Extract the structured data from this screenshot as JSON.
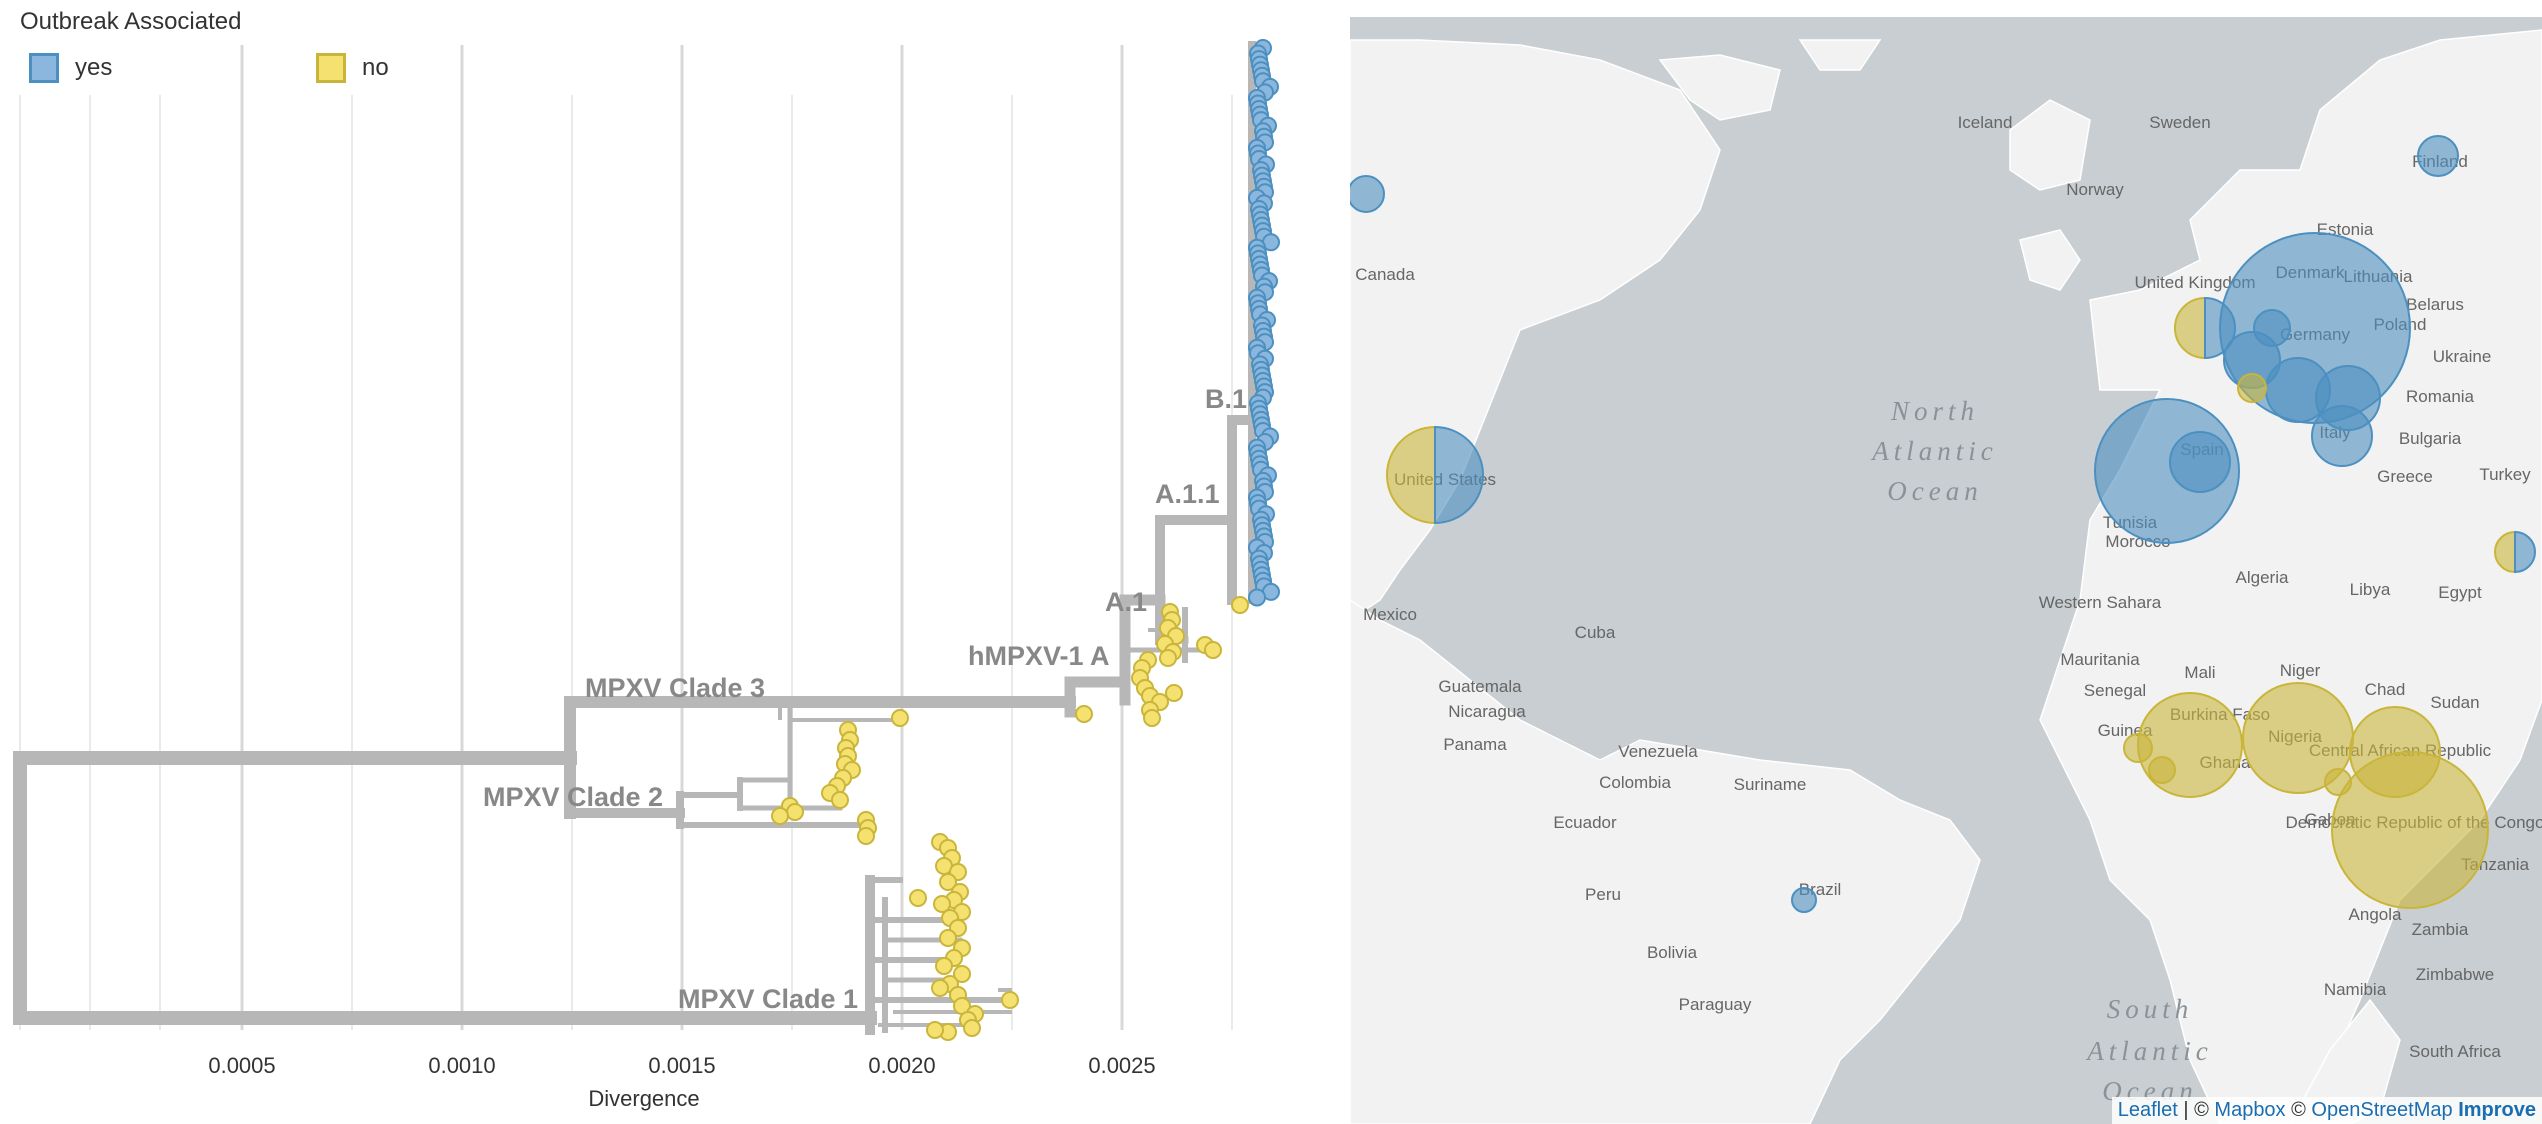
{
  "legend": {
    "title": "Outbreak Associated",
    "items": [
      {
        "label": "yes",
        "color": "#4C90C0",
        "fill": "#8BB7DF"
      },
      {
        "label": "no",
        "color": "#C9B53A",
        "fill": "#F5E16F"
      }
    ]
  },
  "tree": {
    "xlabel": "Divergence",
    "xticks": [
      "0.0005",
      "0.0010",
      "0.0015",
      "0.0020",
      "0.0025"
    ],
    "clade_labels": [
      "MPXV Clade 3",
      "MPXV Clade 2",
      "MPXV Clade 1",
      "hMPXV-1 A",
      "A.1",
      "A.1.1",
      "B.1"
    ],
    "branch_color": "#B7B7B7"
  },
  "map": {
    "places": [
      "Iceland",
      "Sweden",
      "Finland",
      "Norway",
      "Estonia",
      "Denmark",
      "Lithuania",
      "United Kingdom",
      "Belarus",
      "Germany",
      "Poland",
      "Ukraine",
      "Romania",
      "Bulgaria",
      "Italy",
      "Greece",
      "Turkey",
      "Spain",
      "Tunisia",
      "Morocco",
      "Algeria",
      "Libya",
      "Egypt",
      "Western Sahara",
      "Mauritania",
      "Mali",
      "Niger",
      "Chad",
      "Sudan",
      "Senegal",
      "Guinea",
      "Burkina Faso",
      "Ghana",
      "Nigeria",
      "Central African Republic",
      "Gabon",
      "Democratic Republic of the Congo",
      "Tanzania",
      "Angola",
      "Zambia",
      "Namibia",
      "Zimbabwe",
      "South Africa",
      "Canada",
      "United States",
      "Mexico",
      "Cuba",
      "Guatemala",
      "Nicaragua",
      "Panama",
      "Venezuela",
      "Colombia",
      "Suriname",
      "Ecuador",
      "Brazil",
      "Peru",
      "Bolivia",
      "Paraguay"
    ],
    "oceans": [
      "North Atlantic Ocean",
      "South Atlantic Ocean"
    ],
    "attribution": {
      "leaflet": "Leaflet",
      "sep1": " | © ",
      "mapbox": "Mapbox",
      "sep2": " © ",
      "osm": "OpenStreetMap",
      "improve": "Improve"
    },
    "colors": {
      "land": "#F2F2F2",
      "water": "#C8CED1",
      "yes": "#4C90C0",
      "no": "#C9B53A"
    }
  }
}
